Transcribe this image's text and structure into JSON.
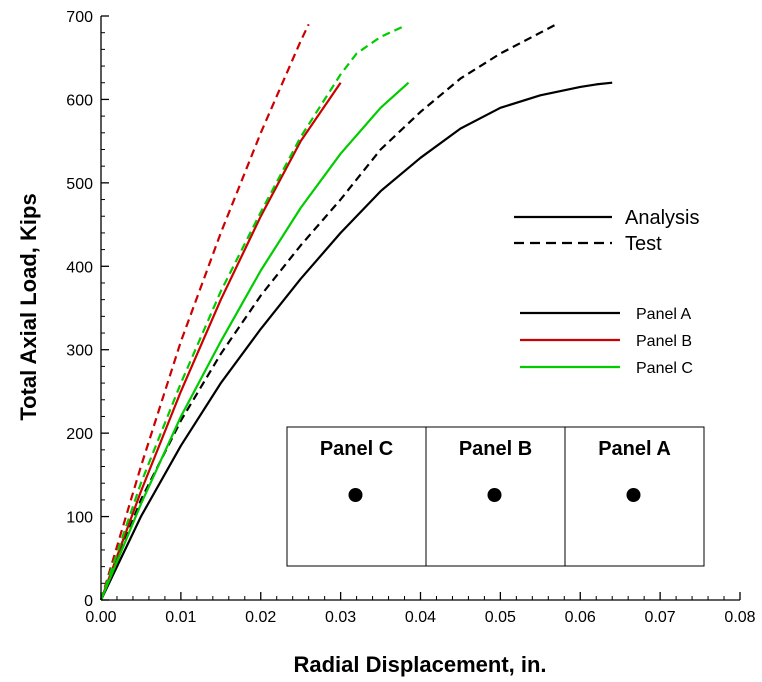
{
  "chart_data": {
    "type": "line",
    "title": "",
    "xlabel": "Radial Displacement, in.",
    "ylabel": "Total Axial Load, Kips",
    "xlim": [
      0,
      0.08
    ],
    "ylim": [
      0,
      700
    ],
    "xticks": [
      "0.00",
      "0.01",
      "0.02",
      "0.03",
      "0.04",
      "0.05",
      "0.06",
      "0.07",
      "0.08"
    ],
    "yticks": [
      "0",
      "100",
      "200",
      "300",
      "400",
      "500",
      "600",
      "700"
    ],
    "grid": false,
    "legend_style": {
      "position": "right",
      "entries": [
        {
          "label": "Analysis",
          "dash": "solid",
          "color": "#000000"
        },
        {
          "label": "Test",
          "dash": "dashed",
          "color": "#000000"
        }
      ]
    },
    "legend_panels": {
      "entries": [
        {
          "label": "Panel A",
          "color": "#000000"
        },
        {
          "label": "Panel B",
          "color": "#cc0000"
        },
        {
          "label": "Panel C",
          "color": "#00cc00"
        }
      ]
    },
    "series": [
      {
        "name": "Panel A",
        "kind": "Analysis",
        "color": "#000000",
        "dash": "solid",
        "x": [
          0,
          0.005,
          0.01,
          0.015,
          0.02,
          0.025,
          0.03,
          0.035,
          0.04,
          0.045,
          0.05,
          0.055,
          0.06,
          0.062,
          0.064
        ],
        "y": [
          0,
          100,
          185,
          260,
          325,
          385,
          440,
          490,
          530,
          565,
          590,
          605,
          615,
          618,
          620
        ]
      },
      {
        "name": "Panel A",
        "kind": "Test",
        "color": "#000000",
        "dash": "dashed",
        "x": [
          0,
          0.005,
          0.01,
          0.015,
          0.02,
          0.025,
          0.03,
          0.035,
          0.04,
          0.045,
          0.05,
          0.055,
          0.057
        ],
        "y": [
          0,
          120,
          215,
          295,
          365,
          425,
          480,
          540,
          585,
          625,
          655,
          680,
          690
        ]
      },
      {
        "name": "Panel B",
        "kind": "Analysis",
        "color": "#cc0000",
        "dash": "solid",
        "x": [
          0,
          0.005,
          0.01,
          0.015,
          0.02,
          0.025,
          0.03
        ],
        "y": [
          0,
          130,
          250,
          360,
          460,
          550,
          620
        ]
      },
      {
        "name": "Panel B",
        "kind": "Test",
        "color": "#cc0000",
        "dash": "dashed",
        "x": [
          0,
          0.005,
          0.01,
          0.015,
          0.02,
          0.025,
          0.026
        ],
        "y": [
          0,
          160,
          310,
          440,
          560,
          670,
          690
        ]
      },
      {
        "name": "Panel C",
        "kind": "Analysis",
        "color": "#00cc00",
        "dash": "solid",
        "x": [
          0,
          0.005,
          0.01,
          0.015,
          0.02,
          0.025,
          0.03,
          0.035,
          0.0385
        ],
        "y": [
          0,
          115,
          220,
          310,
          395,
          470,
          535,
          590,
          620
        ]
      },
      {
        "name": "Panel C",
        "kind": "Test",
        "color": "#00cc00",
        "dash": "dashed",
        "x": [
          0,
          0.005,
          0.01,
          0.015,
          0.02,
          0.025,
          0.03,
          0.032,
          0.035,
          0.038
        ],
        "y": [
          0,
          140,
          260,
          370,
          465,
          555,
          630,
          655,
          675,
          688
        ]
      }
    ],
    "inset": {
      "panels": [
        {
          "label": "Panel C"
        },
        {
          "label": "Panel B"
        },
        {
          "label": "Panel A"
        }
      ]
    }
  }
}
